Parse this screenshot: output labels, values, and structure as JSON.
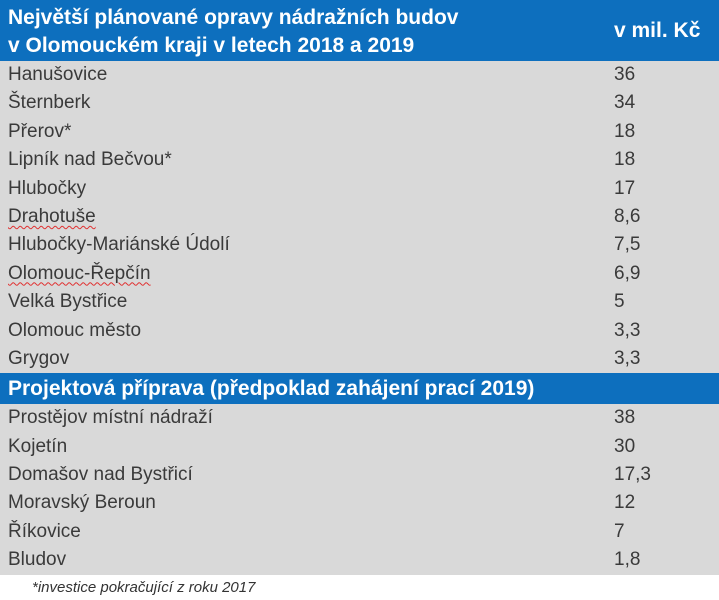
{
  "header": {
    "title_line1": "Největší plánované opravy nádražních budov",
    "title_line2": "v Olomouckém kraji v letech 2018 a 2019",
    "unit": "v mil. Kč"
  },
  "group1": [
    {
      "name": "Hanušovice",
      "value": "36"
    },
    {
      "name": "Šternberk",
      "value": "34"
    },
    {
      "name": "Přerov*",
      "value": "18"
    },
    {
      "name": "Lipník nad Bečvou*",
      "value": "18"
    },
    {
      "name": "Hlubočky",
      "value": "17"
    },
    {
      "name": "Drahotuše",
      "value": "8,6"
    },
    {
      "name": "Hlubočky-Mariánské Údolí",
      "value": "7,5"
    },
    {
      "name": "Olomouc-Řepčín",
      "value": "6,9"
    },
    {
      "name": "Velká Bystřice",
      "value": "5"
    },
    {
      "name": "Olomouc město",
      "value": "3,3"
    },
    {
      "name": "Grygov",
      "value": "3,3"
    }
  ],
  "section": {
    "title": "Projektová příprava (předpoklad zahájení prací 2019)"
  },
  "group2": [
    {
      "name": "Prostějov místní nádraží",
      "value": "38"
    },
    {
      "name": "Kojetín",
      "value": "30"
    },
    {
      "name": "Domašov nad Bystřicí",
      "value": "17,3"
    },
    {
      "name": "Moravský Beroun",
      "value": "12"
    },
    {
      "name": "Říkovice",
      "value": "7"
    },
    {
      "name": "Bludov",
      "value": "1,8"
    }
  ],
  "footnote": "*investice pokračující z roku 2017",
  "colors": {
    "header_bg": "#0d6fbe",
    "row_bg": "#d9d9d9"
  }
}
